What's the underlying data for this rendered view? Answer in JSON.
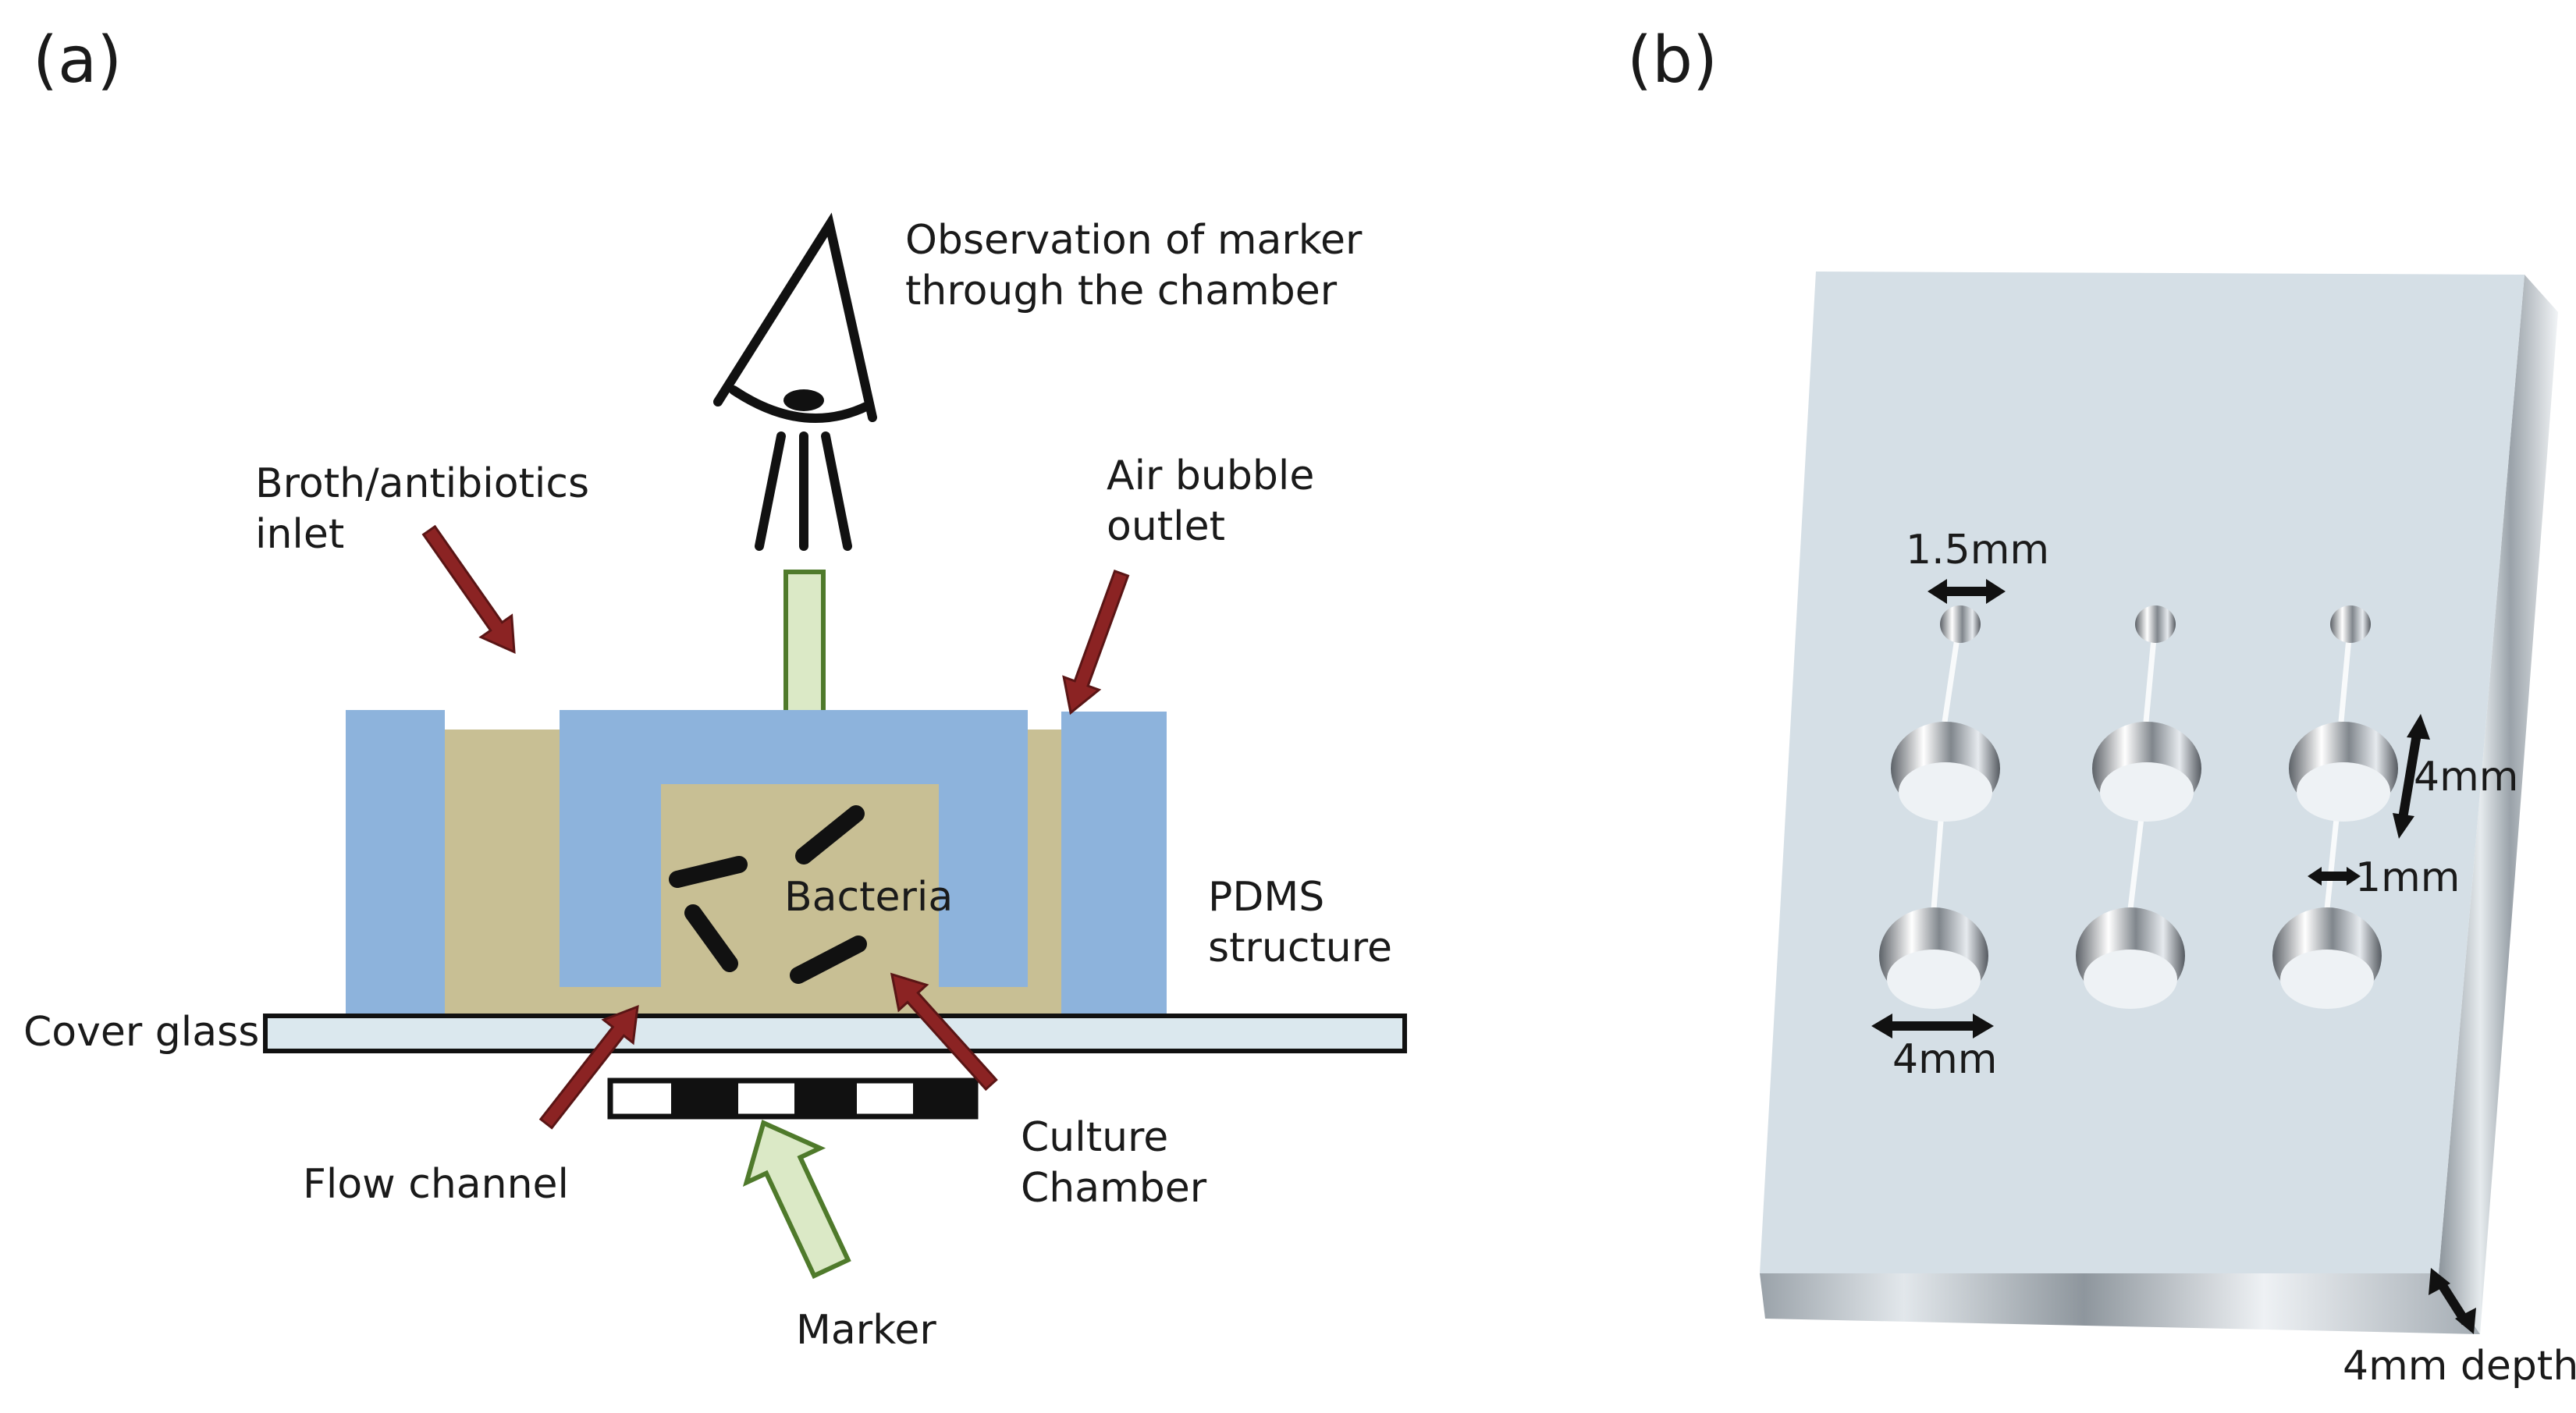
{
  "panel_a": {
    "label": "(a)",
    "observation_line1": "Observation of marker",
    "observation_line2": "through the chamber",
    "inlet_line1": "Broth/antibiotics",
    "inlet_line2": "inlet",
    "outlet_line1": "Air bubble",
    "outlet_line2": "outlet",
    "bacteria": "Bacteria",
    "pdms_line1": "PDMS",
    "pdms_line2": "structure",
    "cover_glass": "Cover glass",
    "flow_channel": "Flow channel",
    "culture_line1": "Culture",
    "culture_line2": "Chamber",
    "marker": "Marker"
  },
  "panel_b": {
    "label": "(b)",
    "dim_inlet": "1.5mm",
    "dim_vertical": "4mm",
    "dim_channel": "1mm",
    "dim_chamber": "4mm",
    "dim_depth": "4mm depth"
  },
  "colors": {
    "pdms": "#8db3dc",
    "broth": "#c8bf94",
    "red_arrow": "#8b2323",
    "green_arrow_fill": "#dbe9c6",
    "green_arrow_stroke": "#4f7a2b",
    "chip": "#d5dfe6"
  }
}
